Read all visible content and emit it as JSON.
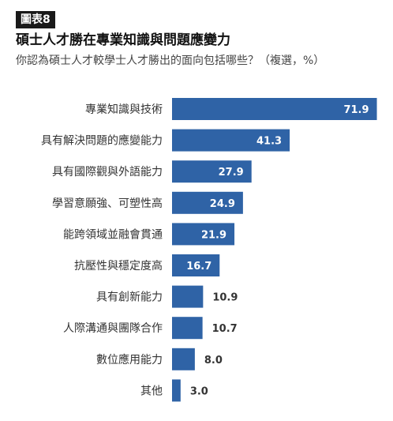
{
  "figure": {
    "tag": "圖表8",
    "title": "碩士人才勝在專業知識與問題應變力",
    "subtitle": "你認為碩士人才較學士人才勝出的面向包括哪些？（複選，%）"
  },
  "colors": {
    "bar": "#2f63a6",
    "tag_bg": "#1a1a1a"
  },
  "chart_data": {
    "type": "bar",
    "orientation": "horizontal",
    "categories": [
      "專業知識與技術",
      "具有解決問題的應變能力",
      "具有國際觀與外語能力",
      "學習意願強、可塑性高",
      "能跨領域並融會貫通",
      "抗壓性與穩定度高",
      "具有創新能力",
      "人際溝通與團隊合作",
      "數位應用能力",
      "其他"
    ],
    "values": [
      71.9,
      41.3,
      27.9,
      24.9,
      21.9,
      16.7,
      10.9,
      10.7,
      8.0,
      3.0
    ],
    "value_labels": [
      "71.9",
      "41.3",
      "27.9",
      "24.9",
      "21.9",
      "16.7",
      "10.9",
      "10.7",
      "8.0",
      "3.0"
    ],
    "xlim": [
      0,
      75
    ],
    "grid": false,
    "legend": "none"
  }
}
